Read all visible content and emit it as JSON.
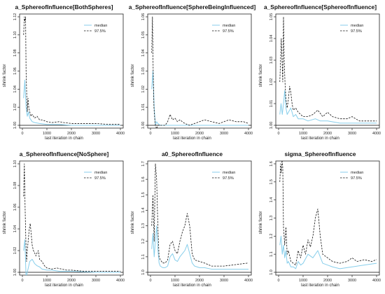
{
  "colors": {
    "median": "#87ceeb",
    "upper": "#111111",
    "reference": "#000000"
  },
  "chart_data": [
    {
      "type": "line",
      "title": "a_SphereofInfluence[BothSpheres]",
      "xlabel": "last iteration in chain",
      "ylabel": "shrink factor",
      "xlim": [
        0,
        4000
      ],
      "ylim": [
        1.0,
        1.12
      ],
      "xticks": [
        "0",
        "1000",
        "2000",
        "3000",
        "4000"
      ],
      "yticks": [
        "1.00",
        "1.02",
        "1.04",
        "1.06",
        "1.08",
        "1.10",
        "1.12"
      ],
      "legend": [
        "median",
        "97.5%"
      ],
      "grid": false,
      "reference_line": 1.0,
      "series": [
        {
          "name": "median",
          "x": [
            50,
            100,
            150,
            200,
            250,
            300,
            400,
            500,
            700,
            1000,
            1500,
            2000,
            3000,
            4000
          ],
          "y": [
            1.03,
            1.05,
            1.02,
            1.01,
            1.015,
            1.008,
            1.004,
            1.003,
            1.002,
            1.001,
            1.001,
            1.0,
            1.0,
            1.0
          ]
        },
        {
          "name": "97.5%",
          "x": [
            50,
            80,
            100,
            130,
            150,
            180,
            200,
            230,
            260,
            300,
            350,
            400,
            500,
            600,
            700,
            800,
            1000,
            1200,
            1500,
            1700,
            2000,
            2500,
            3000,
            3500,
            4000
          ],
          "y": [
            1.1,
            1.12,
            1.115,
            1.12,
            1.06,
            1.03,
            1.015,
            1.03,
            1.02,
            1.015,
            1.01,
            1.012,
            1.008,
            1.01,
            1.006,
            1.006,
            1.004,
            1.003,
            1.004,
            1.003,
            1.002,
            1.002,
            1.002,
            1.001,
            1.001
          ]
        }
      ]
    },
    {
      "type": "line",
      "title": "a_SphereofInfluence[SphereBeingInfluenced]",
      "xlabel": "last iteration in chain",
      "ylabel": "shrink factor",
      "xlim": [
        0,
        4000
      ],
      "ylim": [
        1.0,
        1.06
      ],
      "xticks": [
        "0",
        "1000",
        "2000",
        "3000",
        "4000"
      ],
      "yticks": [
        "1.00",
        "1.01",
        "1.02",
        "1.03",
        "1.04",
        "1.05",
        "1.06"
      ],
      "legend": [
        "median",
        "97.5%"
      ],
      "grid": false,
      "reference_line": 1.0,
      "series": [
        {
          "name": "median",
          "x": [
            50,
            100,
            150,
            200,
            250,
            300,
            400,
            500,
            700,
            1000,
            1500,
            2000,
            3000,
            4000
          ],
          "y": [
            1.02,
            1.03,
            1.01,
            1.0,
            1.002,
            1.001,
            1.0,
            1.0,
            1.0,
            1.0,
            1.0,
            1.0,
            1.0,
            1.0
          ]
        },
        {
          "name": "97.5%",
          "x": [
            50,
            80,
            110,
            140,
            170,
            200,
            250,
            300,
            400,
            500,
            600,
            700,
            800,
            900,
            1000,
            1100,
            1200,
            1300,
            1400,
            1600,
            1800,
            2000,
            2200,
            2500,
            2800,
            3000,
            3200,
            3500,
            3800,
            4000
          ],
          "y": [
            1.04,
            1.06,
            1.03,
            1.01,
            1.004,
            1.0,
            0.998,
            1.0,
            1.0,
            1.0,
            1.0,
            1.002,
            1.006,
            1.003,
            1.004,
            1.002,
            1.003,
            1.002,
            1.001,
            1.0,
            1.001,
            1.002,
            1.003,
            1.002,
            1.001,
            1.002,
            1.003,
            1.002,
            1.002,
            1.001
          ]
        }
      ]
    },
    {
      "type": "line",
      "title": "a_SphereofInfluence[SphereofInfluence]",
      "xlabel": "last iteration in chain",
      "ylabel": "shrink factor",
      "xlim": [
        0,
        4000
      ],
      "ylim": [
        1.0,
        1.05
      ],
      "xticks": [
        "0",
        "1000",
        "2000",
        "3000",
        "4000"
      ],
      "yticks": [
        "1.00",
        "1.01",
        "1.02",
        "1.03",
        "1.04",
        "1.05"
      ],
      "legend": [
        "median",
        "97.5%"
      ],
      "grid": false,
      "reference_line": 1.0,
      "series": [
        {
          "name": "median",
          "x": [
            50,
            100,
            150,
            200,
            250,
            300,
            350,
            400,
            500,
            600,
            700,
            800,
            1000,
            1200,
            1500,
            1700,
            2000,
            2500,
            3000,
            3500,
            4000
          ],
          "y": [
            1.005,
            1.01,
            1.005,
            1.01,
            1.016,
            1.008,
            1.005,
            1.006,
            1.008,
            1.004,
            1.005,
            1.003,
            1.003,
            1.002,
            1.003,
            1.002,
            1.002,
            1.001,
            1.001,
            1.001,
            1.001
          ]
        },
        {
          "name": "97.5%",
          "x": [
            50,
            80,
            110,
            140,
            170,
            200,
            230,
            260,
            300,
            350,
            400,
            450,
            500,
            550,
            600,
            700,
            800,
            900,
            1000,
            1200,
            1400,
            1600,
            1800,
            2000,
            2200,
            2500,
            2800,
            3000,
            3300,
            3600,
            4000
          ],
          "y": [
            1.02,
            1.03,
            1.04,
            1.03,
            1.02,
            1.05,
            1.03,
            1.02,
            1.012,
            1.008,
            1.012,
            1.018,
            1.015,
            1.01,
            1.007,
            1.008,
            1.006,
            1.005,
            1.004,
            1.004,
            1.005,
            1.007,
            1.004,
            1.006,
            1.004,
            1.003,
            1.003,
            1.004,
            1.002,
            1.002,
            1.002
          ]
        }
      ]
    },
    {
      "type": "line",
      "title": "a_SphereofInfluence[NoSphere]",
      "xlabel": "last iteration in chain",
      "ylabel": "shrink factor",
      "xlim": [
        0,
        4000
      ],
      "ylim": [
        1.0,
        1.1
      ],
      "xticks": [
        "0",
        "1000",
        "2000",
        "3000",
        "4000"
      ],
      "yticks": [
        "1.00",
        "1.02",
        "1.04",
        "1.06",
        "1.08",
        "1.10"
      ],
      "legend": [
        "median",
        "97.5%"
      ],
      "grid": false,
      "reference_line": 1.0,
      "series": [
        {
          "name": "median",
          "x": [
            50,
            100,
            150,
            200,
            250,
            300,
            400,
            500,
            600,
            700,
            800,
            1000,
            1200,
            1500,
            2000,
            3000,
            4000
          ],
          "y": [
            1.02,
            1.03,
            0.995,
            1.0,
            1.005,
            1.01,
            1.012,
            1.008,
            1.006,
            1.005,
            1.003,
            1.002,
            1.002,
            1.001,
            1.001,
            1.0,
            1.0
          ]
        },
        {
          "name": "97.5%",
          "x": [
            50,
            80,
            110,
            140,
            170,
            200,
            240,
            280,
            320,
            360,
            400,
            450,
            500,
            550,
            600,
            650,
            700,
            800,
            900,
            1000,
            1200,
            1400,
            1600,
            1800,
            2000,
            2500,
            3000,
            3500,
            4000
          ],
          "y": [
            1.07,
            1.1,
            1.06,
            1.03,
            1.01,
            1.02,
            1.03,
            1.04,
            1.045,
            1.035,
            1.025,
            1.02,
            1.018,
            1.015,
            1.018,
            1.02,
            1.012,
            1.01,
            1.006,
            1.004,
            1.003,
            1.004,
            1.003,
            1.002,
            1.002,
            1.001,
            1.001,
            1.001,
            1.001
          ]
        }
      ]
    },
    {
      "type": "line",
      "title": "a0_SphereofInfluence",
      "xlabel": "last iteration in chain",
      "ylabel": "shrink factor",
      "xlim": [
        0,
        4000
      ],
      "ylim": [
        1.0,
        1.7
      ],
      "xticks": [
        "0",
        "1000",
        "2000",
        "3000",
        "4000"
      ],
      "yticks": [
        "1.0",
        "1.1",
        "1.2",
        "1.3",
        "1.4",
        "1.5",
        "1.6",
        "1.7"
      ],
      "legend": [
        "median",
        "97.5%"
      ],
      "grid": false,
      "reference_line": 1.0,
      "series": [
        {
          "name": "median",
          "x": [
            50,
            100,
            150,
            200,
            250,
            300,
            350,
            400,
            500,
            600,
            700,
            800,
            900,
            1000,
            1100,
            1200,
            1300,
            1400,
            1500,
            1600,
            1700,
            1800,
            2000,
            2200,
            2500,
            3000,
            3500,
            4000
          ],
          "y": [
            1.15,
            1.25,
            1.1,
            1.2,
            1.3,
            1.15,
            1.06,
            1.04,
            1.03,
            1.03,
            1.04,
            1.1,
            1.12,
            1.08,
            1.07,
            1.1,
            1.12,
            1.14,
            1.18,
            1.12,
            1.06,
            1.04,
            1.03,
            1.03,
            1.02,
            1.02,
            1.02,
            1.02
          ]
        },
        {
          "name": "97.5%",
          "x": [
            50,
            100,
            150,
            200,
            250,
            300,
            350,
            400,
            500,
            600,
            700,
            800,
            900,
            1000,
            1100,
            1200,
            1300,
            1400,
            1500,
            1600,
            1700,
            1800,
            2000,
            2200,
            2500,
            3000,
            3500,
            4000
          ],
          "y": [
            1.3,
            1.5,
            1.2,
            1.7,
            1.6,
            1.3,
            1.1,
            1.08,
            1.06,
            1.06,
            1.08,
            1.18,
            1.2,
            1.14,
            1.12,
            1.2,
            1.26,
            1.3,
            1.38,
            1.3,
            1.12,
            1.08,
            1.07,
            1.06,
            1.04,
            1.04,
            1.05,
            1.06
          ]
        }
      ]
    },
    {
      "type": "line",
      "title": "sigma_SphereofInfluence",
      "xlabel": "last iteration in chain",
      "ylabel": "shrink factor",
      "xlim": [
        0,
        4000
      ],
      "ylim": [
        1.0,
        1.6
      ],
      "xticks": [
        "0",
        "1000",
        "2000",
        "3000",
        "4000"
      ],
      "yticks": [
        "1.0",
        "1.1",
        "1.2",
        "1.3",
        "1.4",
        "1.5",
        "1.6"
      ],
      "legend": [
        "median",
        "97.5%"
      ],
      "grid": false,
      "reference_line": 1.0,
      "series": [
        {
          "name": "median",
          "x": [
            50,
            100,
            150,
            200,
            250,
            300,
            350,
            400,
            500,
            600,
            700,
            800,
            900,
            1000,
            1200,
            1400,
            1600,
            1800,
            2000,
            2200,
            2500,
            3000,
            3500,
            4000
          ],
          "y": [
            1.15,
            1.2,
            1.1,
            1.15,
            1.08,
            1.12,
            1.05,
            1.06,
            1.03,
            1.03,
            1.02,
            1.06,
            1.04,
            1.05,
            1.1,
            1.08,
            1.12,
            1.05,
            1.04,
            1.03,
            1.02,
            1.03,
            1.04,
            1.05
          ]
        },
        {
          "name": "97.5%",
          "x": [
            50,
            80,
            110,
            140,
            170,
            200,
            250,
            300,
            350,
            400,
            500,
            600,
            700,
            800,
            900,
            1000,
            1100,
            1200,
            1300,
            1400,
            1500,
            1600,
            1700,
            1800,
            2000,
            2200,
            2500,
            2800,
            3000,
            3200,
            3500,
            3800,
            4000
          ],
          "y": [
            1.5,
            1.6,
            1.55,
            1.62,
            1.58,
            1.25,
            1.15,
            1.25,
            1.1,
            1.12,
            1.06,
            1.05,
            1.04,
            1.12,
            1.08,
            1.15,
            1.1,
            1.18,
            1.14,
            1.2,
            1.3,
            1.35,
            1.2,
            1.1,
            1.08,
            1.06,
            1.05,
            1.06,
            1.08,
            1.06,
            1.07,
            1.06,
            1.07
          ]
        }
      ]
    }
  ]
}
